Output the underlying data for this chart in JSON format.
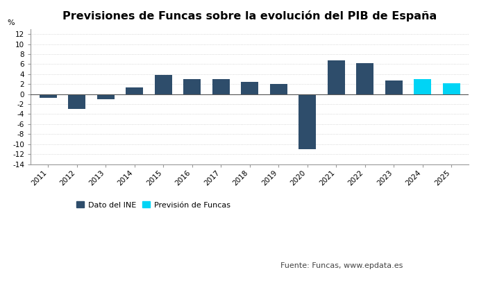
{
  "title": "Previsiones de Funcas sobre la evolución del PIB de España",
  "ylabel": "%",
  "years": [
    2011,
    2012,
    2013,
    2014,
    2015,
    2016,
    2017,
    2018,
    2019,
    2020,
    2021,
    2022,
    2023,
    2024,
    2025
  ],
  "values": [
    -0.8,
    -2.9,
    -1.0,
    1.4,
    3.8,
    3.0,
    3.0,
    2.4,
    2.0,
    -11.0,
    6.8,
    6.2,
    2.7,
    3.0,
    2.1
  ],
  "bar_types": [
    "ine",
    "ine",
    "ine",
    "ine",
    "ine",
    "ine",
    "ine",
    "ine",
    "ine",
    "ine",
    "ine",
    "ine",
    "ine",
    "funcas",
    "funcas"
  ],
  "color_ine": "#2e4d6b",
  "color_funcas": "#00d4f5",
  "ylim": [
    -14,
    13
  ],
  "yticks": [
    -14,
    -12,
    -10,
    -8,
    -6,
    -4,
    -2,
    0,
    2,
    4,
    6,
    8,
    10,
    12
  ],
  "legend_ine": "Dato del INE",
  "legend_funcas": "Previsión de Funcas",
  "source_text": "Fuente: Funcas, www.epdata.es",
  "background_color": "#ffffff",
  "grid_color": "#cccccc",
  "title_fontsize": 11.5,
  "label_fontsize": 8,
  "tick_fontsize": 7.5,
  "legend_fontsize": 8
}
